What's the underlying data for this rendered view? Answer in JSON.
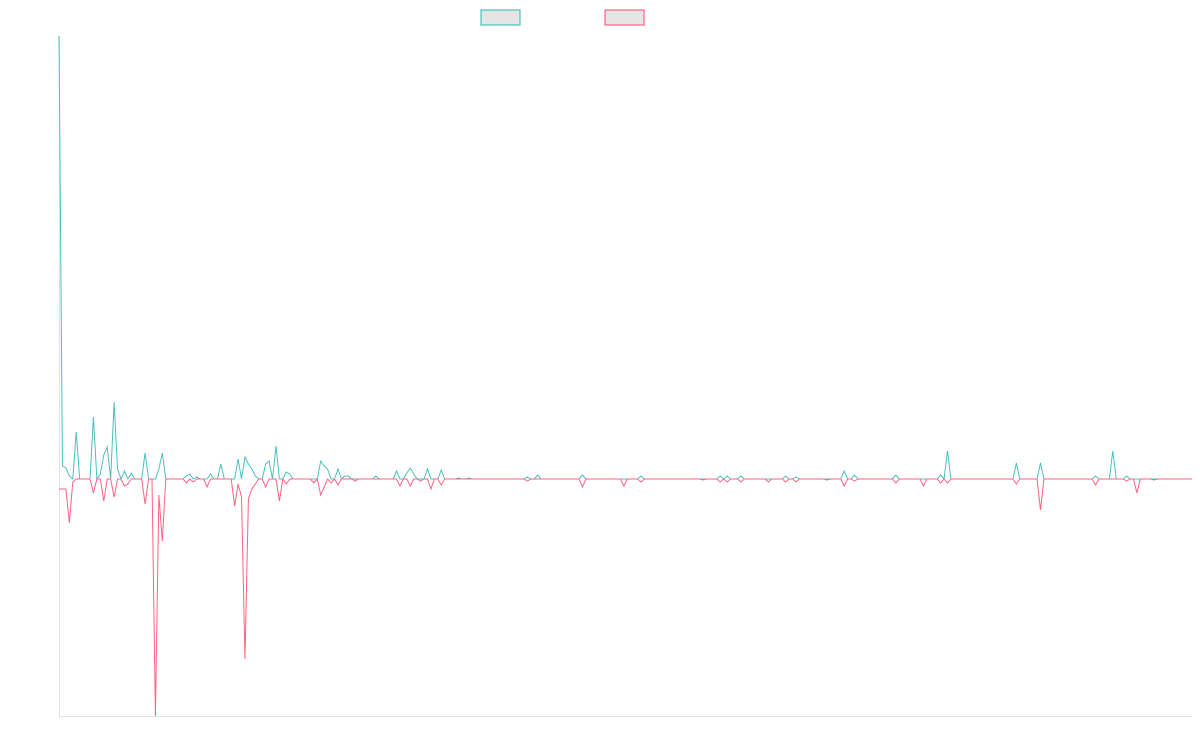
{
  "chart_data": {
    "type": "line",
    "title": "",
    "xlabel": "",
    "ylabel": "",
    "ylim": [
      -237,
      443
    ],
    "grid": false,
    "legend_position": "top",
    "series": [
      {
        "color": "#4bc0c0",
        "values": [
          443,
          13,
          11,
          3,
          0,
          47,
          0,
          0,
          0,
          0,
          62,
          0,
          5,
          24,
          32,
          0,
          77,
          10,
          0,
          8,
          0,
          6,
          0,
          0,
          0,
          26,
          0,
          0,
          0,
          10,
          26,
          0,
          0,
          0,
          0,
          0,
          0,
          3,
          5,
          0,
          2,
          0,
          0,
          0,
          5,
          0,
          0,
          15,
          0,
          0,
          0,
          0,
          20,
          0,
          22,
          15,
          10,
          3,
          0,
          0,
          15,
          18,
          0,
          33,
          0,
          0,
          7,
          5,
          0,
          0,
          0,
          0,
          0,
          0,
          0,
          0,
          18,
          13,
          10,
          0,
          0,
          10,
          0,
          3,
          3,
          0,
          0,
          0,
          0,
          0,
          0,
          0,
          3,
          0,
          0,
          0,
          0,
          0,
          8,
          0,
          0,
          6,
          11,
          5,
          0,
          0,
          0,
          10,
          0,
          0,
          0,
          9,
          0,
          0,
          0,
          0,
          1,
          0,
          0,
          1,
          0,
          0,
          0,
          0,
          0,
          0,
          0,
          0,
          0,
          0,
          0,
          0,
          0,
          0,
          0,
          0,
          2,
          0,
          0,
          4,
          0,
          0,
          0,
          0,
          0,
          0,
          0,
          0,
          0,
          0,
          0,
          0,
          4,
          0,
          0,
          0,
          0,
          0,
          0,
          0,
          0,
          0,
          0,
          0,
          0,
          0,
          0,
          0,
          0,
          3,
          0,
          0,
          0,
          0,
          0,
          0,
          0,
          0,
          0,
          0,
          0,
          0,
          0,
          0,
          0,
          0,
          0,
          0,
          0,
          0,
          0,
          0,
          3,
          0,
          3,
          0,
          0,
          0,
          3,
          0,
          0,
          0,
          0,
          0,
          0,
          0,
          0,
          0,
          0,
          0,
          0,
          3,
          0,
          0,
          2,
          0,
          0,
          0,
          0,
          0,
          0,
          0,
          0,
          0,
          0,
          0,
          0,
          0,
          8,
          0,
          0,
          4,
          0,
          0,
          0,
          0,
          0,
          0,
          0,
          0,
          0,
          0,
          0,
          4,
          0,
          0,
          0,
          0,
          0,
          0,
          0,
          0,
          0,
          0,
          0,
          0,
          4,
          0,
          28,
          0,
          0,
          0,
          0,
          0,
          0,
          0,
          0,
          0,
          0,
          0,
          0,
          0,
          0,
          0,
          0,
          0,
          0,
          0,
          16,
          0,
          0,
          0,
          0,
          0,
          0,
          16,
          0,
          0,
          0,
          0,
          0,
          0,
          0,
          0,
          0,
          0,
          0,
          0,
          0,
          0,
          0,
          3,
          0,
          0,
          0,
          0,
          28,
          0,
          0,
          0,
          3,
          0,
          0,
          0,
          0,
          0,
          0,
          0,
          0,
          0,
          0,
          0,
          0,
          0,
          0,
          0,
          0,
          0,
          0,
          0
        ]
      },
      {
        "color": "#ff6384",
        "values": [
          -10,
          -10,
          -10,
          -44,
          -3,
          0,
          0,
          0,
          0,
          0,
          -14,
          0,
          0,
          -22,
          0,
          0,
          -18,
          0,
          0,
          -7,
          -5,
          0,
          0,
          0,
          0,
          -25,
          0,
          0,
          -237,
          -16,
          -62,
          0,
          0,
          0,
          0,
          0,
          0,
          -4,
          0,
          -3,
          0,
          0,
          0,
          -8,
          0,
          0,
          0,
          0,
          0,
          0,
          0,
          -27,
          -5,
          -18,
          -180,
          -20,
          -10,
          -5,
          0,
          0,
          -8,
          0,
          0,
          0,
          -22,
          0,
          -5,
          0,
          0,
          0,
          0,
          0,
          0,
          0,
          -4,
          0,
          -16,
          -8,
          0,
          -4,
          0,
          -6,
          0,
          0,
          0,
          0,
          -2,
          0,
          0,
          0,
          0,
          0,
          0,
          0,
          0,
          0,
          0,
          0,
          0,
          -7,
          0,
          0,
          -7,
          0,
          0,
          -2,
          0,
          0,
          -10,
          0,
          0,
          -6,
          0,
          0,
          0,
          0,
          0,
          0,
          0,
          0,
          0,
          0,
          0,
          0,
          0,
          0,
          0,
          0,
          0,
          0,
          0,
          0,
          0,
          0,
          0,
          0,
          -2,
          0,
          0,
          0,
          0,
          0,
          0,
          0,
          0,
          0,
          0,
          0,
          0,
          0,
          0,
          0,
          -8,
          0,
          0,
          0,
          0,
          0,
          0,
          0,
          0,
          0,
          0,
          0,
          -7,
          0,
          0,
          0,
          0,
          -3,
          0,
          0,
          0,
          0,
          0,
          0,
          0,
          0,
          0,
          0,
          0,
          0,
          0,
          0,
          0,
          0,
          0,
          -1,
          0,
          0,
          0,
          0,
          -3,
          0,
          -3,
          0,
          0,
          0,
          -3,
          0,
          0,
          0,
          0,
          0,
          0,
          0,
          -3,
          0,
          0,
          0,
          0,
          -3,
          0,
          0,
          -3,
          0,
          0,
          0,
          0,
          0,
          0,
          0,
          0,
          -1,
          0,
          0,
          0,
          0,
          -7,
          0,
          0,
          -2,
          0,
          0,
          0,
          0,
          0,
          0,
          0,
          0,
          0,
          0,
          0,
          -4,
          0,
          0,
          0,
          0,
          0,
          0,
          0,
          -7,
          0,
          0,
          0,
          0,
          -4,
          0,
          -4,
          0,
          0,
          0,
          0,
          0,
          0,
          0,
          0,
          0,
          0,
          0,
          0,
          0,
          0,
          0,
          0,
          0,
          0,
          0,
          -5,
          0,
          0,
          0,
          0,
          0,
          0,
          -31,
          0,
          0,
          0,
          0,
          0,
          0,
          0,
          0,
          0,
          0,
          0,
          0,
          0,
          0,
          0,
          -6,
          0,
          0,
          0,
          0,
          0,
          0,
          0,
          0,
          -2,
          0,
          0,
          -14,
          0,
          0,
          0,
          0,
          -1,
          0,
          0,
          0,
          0,
          0,
          0,
          0,
          0,
          0,
          0,
          0
        ]
      }
    ]
  }
}
